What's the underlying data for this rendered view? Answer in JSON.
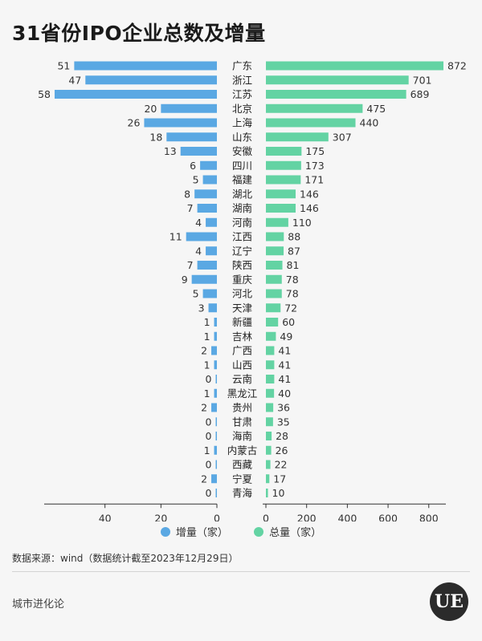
{
  "title": "31省份IPO企业总数及增量",
  "legend": {
    "increment_label": "增量（家）",
    "total_label": "总量（家）"
  },
  "source": "数据来源：wind（数据统计截至2023年12月29日）",
  "brand": "城市进化论",
  "logo_text": "UE",
  "colors": {
    "increment": "#5aa8e3",
    "total": "#63d3a3",
    "axis": "#333333"
  },
  "chart_data": {
    "type": "bar",
    "categories": [
      "广东",
      "浙江",
      "江苏",
      "北京",
      "上海",
      "山东",
      "安徽",
      "四川",
      "福建",
      "湖北",
      "湖南",
      "河南",
      "江西",
      "辽宁",
      "陕西",
      "重庆",
      "河北",
      "天津",
      "新疆",
      "吉林",
      "广西",
      "山西",
      "云南",
      "黑龙江",
      "贵州",
      "甘肃",
      "海南",
      "内蒙古",
      "西藏",
      "宁夏",
      "青海"
    ],
    "series": [
      {
        "name": "增量（家）",
        "values": [
          51,
          47,
          58,
          20,
          26,
          18,
          13,
          6,
          5,
          8,
          7,
          4,
          11,
          4,
          7,
          9,
          5,
          3,
          1,
          1,
          2,
          1,
          0,
          1,
          2,
          0,
          0,
          1,
          0,
          2,
          0
        ],
        "xlim": [
          0,
          58
        ],
        "ticks": [
          40,
          20,
          0
        ]
      },
      {
        "name": "总量（家）",
        "values": [
          872,
          701,
          689,
          475,
          440,
          307,
          175,
          173,
          171,
          146,
          146,
          110,
          88,
          87,
          81,
          78,
          78,
          72,
          60,
          49,
          41,
          41,
          41,
          40,
          36,
          35,
          28,
          26,
          22,
          17,
          10
        ],
        "xlim": [
          0,
          872
        ],
        "ticks": [
          0,
          200,
          400,
          600,
          800
        ]
      }
    ]
  }
}
